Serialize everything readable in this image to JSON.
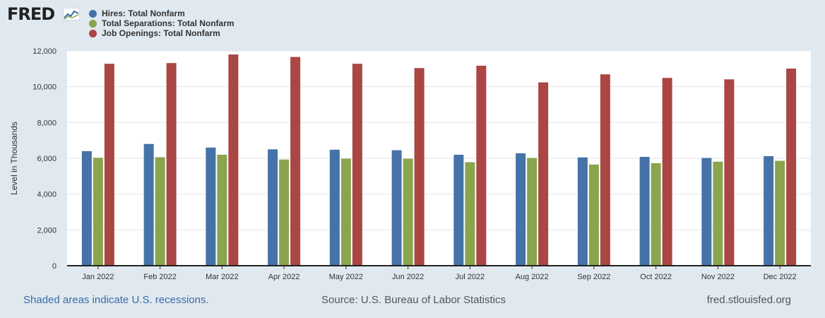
{
  "brand": {
    "name": "FRED"
  },
  "colors": {
    "hires": "#4572a7",
    "separations": "#89a54e",
    "openings": "#aa4643",
    "background": "#e1e9f0",
    "plot_bg": "#ffffff",
    "link": "#3a6aa6"
  },
  "chart_data": {
    "type": "bar",
    "title": "",
    "xlabel": "",
    "ylabel": "Level in Thousands",
    "ylim": [
      0,
      12000
    ],
    "yticks": [
      0,
      2000,
      4000,
      6000,
      8000,
      10000,
      12000
    ],
    "ytick_labels": [
      "0",
      "2,000",
      "4,000",
      "6,000",
      "8,000",
      "10,000",
      "12,000"
    ],
    "grid": true,
    "legend_position": "top-left",
    "categories": [
      "Jan 2022",
      "Feb 2022",
      "Mar 2022",
      "Apr 2022",
      "May 2022",
      "Jun 2022",
      "Jul 2022",
      "Aug 2022",
      "Sep 2022",
      "Oct 2022",
      "Nov 2022",
      "Dec 2022"
    ],
    "series": [
      {
        "name": "Hires: Total Nonfarm",
        "color": "#4572a7",
        "values": [
          6400,
          6800,
          6600,
          6500,
          6480,
          6450,
          6200,
          6280,
          6050,
          6080,
          6020,
          6120
        ]
      },
      {
        "name": "Total Separations: Total Nonfarm",
        "color": "#89a54e",
        "values": [
          6030,
          6060,
          6200,
          5930,
          5980,
          5980,
          5780,
          6020,
          5650,
          5730,
          5810,
          5860
        ]
      },
      {
        "name": "Job Openings: Total Nonfarm",
        "color": "#aa4643",
        "values": [
          11280,
          11320,
          11800,
          11660,
          11280,
          11040,
          11170,
          10240,
          10690,
          10490,
          10410,
          11010
        ]
      }
    ]
  },
  "footer": {
    "note": "Shaded areas indicate U.S. recessions.",
    "source": "Source: U.S. Bureau of Labor Statistics",
    "site": "fred.stlouisfed.org"
  }
}
